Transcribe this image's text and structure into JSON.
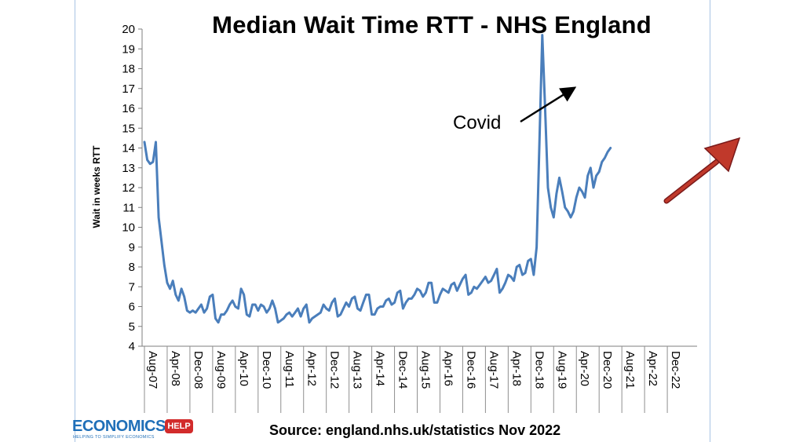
{
  "title": "Median Wait Time RTT - NHS England",
  "source": "Source: england.nhs.uk/statistics Nov 2022",
  "annotation": "Covid",
  "logo": {
    "main": "ECONOMICS",
    "badge": "HELP",
    "tagline": "HELPING TO SIMPLIFY ECONOMICS"
  },
  "colors": {
    "line": "#4a7ebb",
    "trend_arrow": "#b22222",
    "annotation_arrow": "#000000",
    "frame": "#a9c4e3"
  },
  "chart_data": {
    "type": "line",
    "ylabel": "Wait in weeks RTT",
    "ylim": [
      4,
      20
    ],
    "yticks": [
      4,
      5,
      6,
      7,
      8,
      9,
      10,
      11,
      12,
      13,
      14,
      15,
      16,
      17,
      18,
      19,
      20
    ],
    "grid": false,
    "x_tick_labels": [
      "Aug-07",
      "Apr-08",
      "Dec-08",
      "Aug-09",
      "Apr-10",
      "Dec-10",
      "Aug-11",
      "Apr-12",
      "Dec-12",
      "Aug-13",
      "Apr-14",
      "Dec-14",
      "Aug-15",
      "Apr-16",
      "Dec-16",
      "Aug-17",
      "Apr-18",
      "Dec-18",
      "Aug-19",
      "Apr-20",
      "Dec-20",
      "Aug-21",
      "Apr-22",
      "Dec-22"
    ],
    "series": [
      {
        "start": "2007-08",
        "values": [
          14.3,
          13.4,
          13.2,
          13.3,
          14.3,
          10.5,
          9.3,
          8.1,
          7.2,
          6.9,
          7.3,
          6.6,
          6.3,
          6.9,
          6.5,
          5.8,
          5.7,
          5.8,
          5.7,
          5.9,
          6.1,
          5.7,
          5.9,
          6.5,
          6.6,
          5.4,
          5.2,
          5.6,
          5.6,
          5.8,
          6.1,
          6.3,
          6.0,
          5.9,
          6.9,
          6.6,
          5.6,
          5.5,
          6.1,
          6.1,
          5.8,
          6.1,
          6.0,
          5.7,
          5.9,
          6.3,
          5.9,
          5.2,
          5.3,
          5.4,
          5.6,
          5.7,
          5.5,
          5.7,
          5.9,
          5.5,
          5.9,
          6.1,
          5.2,
          5.4,
          5.5,
          5.6,
          5.7,
          6.1,
          5.9,
          5.8,
          6.2,
          6.4,
          5.5,
          5.6,
          5.9,
          6.2,
          6.0,
          6.4,
          6.5,
          5.9,
          5.8,
          6.2,
          6.6,
          6.6,
          5.6,
          5.6,
          5.9,
          6.0,
          6.0,
          6.3,
          6.4,
          6.1,
          6.2,
          6.7,
          6.8,
          5.9,
          6.2,
          6.4,
          6.4,
          6.6,
          6.9,
          6.8,
          6.5,
          6.7,
          7.2,
          7.2,
          6.2,
          6.2,
          6.6,
          6.9,
          6.8,
          6.7,
          7.1,
          7.2,
          6.8,
          7.1,
          7.4,
          7.6,
          6.6,
          6.7,
          7.0,
          6.9,
          7.1,
          7.3,
          7.5,
          7.2,
          7.3,
          7.6,
          7.9,
          6.7,
          6.9,
          7.2,
          7.6,
          7.5,
          7.3,
          8.0,
          8.1,
          7.6,
          7.7,
          8.3,
          8.4,
          7.6,
          9.0,
          14.3,
          19.7,
          16.0,
          12.0,
          11.0,
          10.5,
          11.7,
          12.5,
          11.8,
          11.0,
          10.8,
          10.5,
          10.8,
          11.5,
          12.0,
          11.8,
          11.5,
          12.6,
          13.0,
          12.0,
          12.6,
          12.8,
          13.3,
          13.5,
          13.8,
          14.0
        ]
      }
    ]
  }
}
